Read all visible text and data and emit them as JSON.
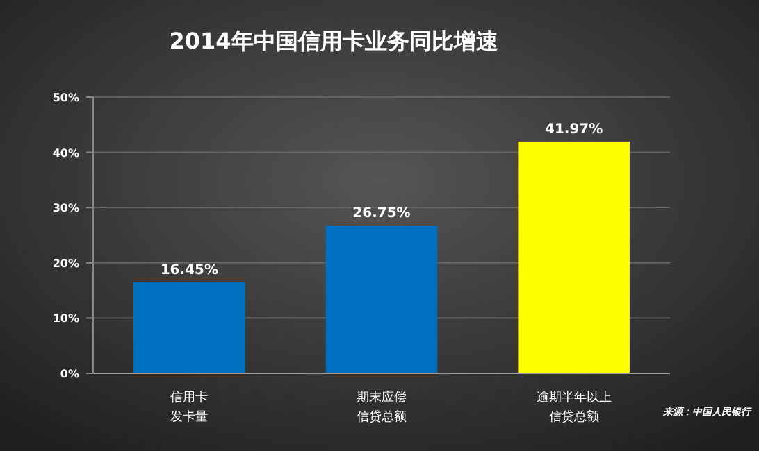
{
  "chart_data": {
    "type": "bar",
    "title": "2014年中国信用卡业务同比增速",
    "categories": [
      "信用卡发卡量",
      "期末应偿信贷总额",
      "逾期半年以上信贷总额"
    ],
    "values": [
      16.45,
      26.75,
      41.97
    ],
    "colors": [
      "#0070c0",
      "#0070c0",
      "#ffff00"
    ],
    "value_labels": [
      "16.45%",
      "26.75%",
      "41.97%"
    ],
    "ylim": [
      0,
      50
    ],
    "yticks": [
      {
        "value": 0,
        "label": "0%"
      },
      {
        "value": 10,
        "label": "10%"
      },
      {
        "value": 20,
        "label": "20%"
      },
      {
        "value": 30,
        "label": "30%"
      },
      {
        "value": 40,
        "label": "40%"
      },
      {
        "value": 50,
        "label": "50%"
      }
    ],
    "grid": true,
    "annotations": [
      "来源：中国人民银行"
    ]
  }
}
